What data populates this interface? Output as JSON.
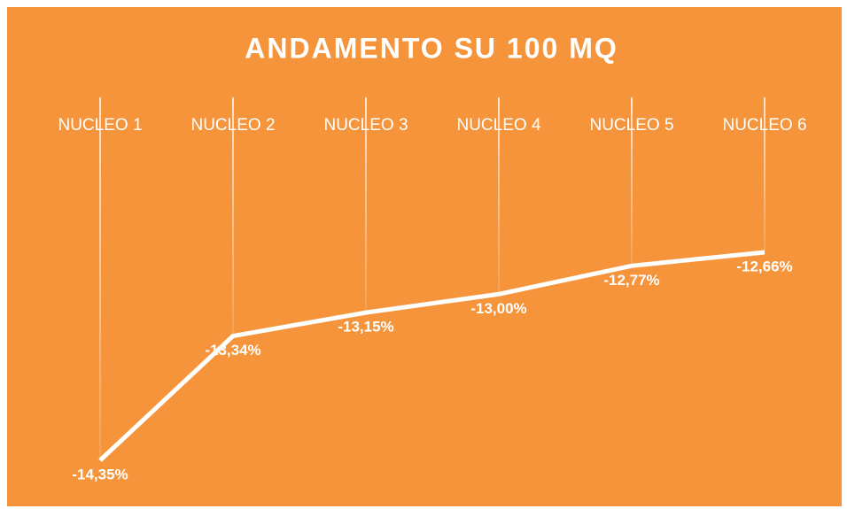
{
  "chart_data": {
    "type": "line",
    "title": "ANDAMENTO SU 100 MQ",
    "categories": [
      "NUCLEO 1",
      "NUCLEO 2",
      "NUCLEO 3",
      "NUCLEO 4",
      "NUCLEO 5",
      "NUCLEO 6"
    ],
    "values": [
      -14.35,
      -13.34,
      -13.15,
      -13.0,
      -12.77,
      -12.66
    ],
    "value_labels": [
      "-14,35%",
      "-13,34%",
      "-13,15%",
      "-13,00%",
      "-12,77%",
      "-12,66%"
    ],
    "color": "#ffffff",
    "background": "#f5943a"
  }
}
